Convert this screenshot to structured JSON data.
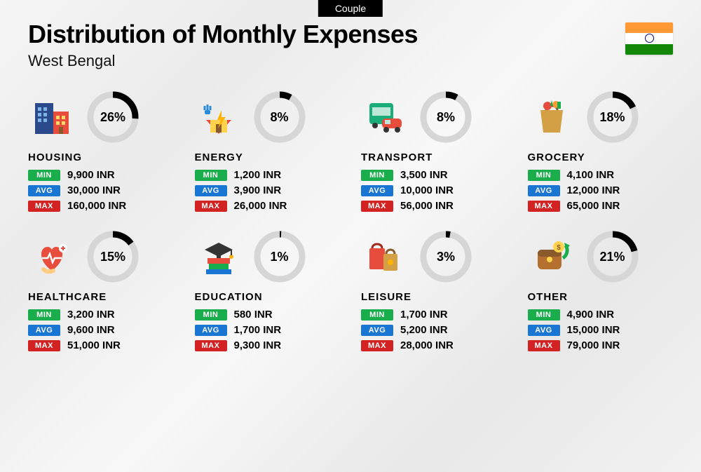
{
  "tag": "Couple",
  "title": "Distribution of Monthly Expenses",
  "subtitle": "West Bengal",
  "currency": "INR",
  "labels": {
    "min": "MIN",
    "avg": "AVG",
    "max": "MAX"
  },
  "colors": {
    "min_badge": "#1aad4b",
    "avg_badge": "#1976d2",
    "max_badge": "#d32222",
    "donut_track": "#d6d6d6",
    "donut_fill": "#000000",
    "background": "#f2f2f2",
    "text": "#000000"
  },
  "donut": {
    "size": 78,
    "stroke_width": 9,
    "radius": 32
  },
  "flag": {
    "saffron": "#FF9933",
    "white": "#ffffff",
    "green": "#138808",
    "chakra": "#000080"
  },
  "categories": [
    {
      "key": "housing",
      "name": "HOUSING",
      "percent": 26,
      "min": "9,900 INR",
      "avg": "30,000 INR",
      "max": "160,000 INR",
      "icon": "housing-icon"
    },
    {
      "key": "energy",
      "name": "ENERGY",
      "percent": 8,
      "min": "1,200 INR",
      "avg": "3,900 INR",
      "max": "26,000 INR",
      "icon": "energy-icon"
    },
    {
      "key": "transport",
      "name": "TRANSPORT",
      "percent": 8,
      "min": "3,500 INR",
      "avg": "10,000 INR",
      "max": "56,000 INR",
      "icon": "transport-icon"
    },
    {
      "key": "grocery",
      "name": "GROCERY",
      "percent": 18,
      "min": "4,100 INR",
      "avg": "12,000 INR",
      "max": "65,000 INR",
      "icon": "grocery-icon"
    },
    {
      "key": "healthcare",
      "name": "HEALTHCARE",
      "percent": 15,
      "min": "3,200 INR",
      "avg": "9,600 INR",
      "max": "51,000 INR",
      "icon": "healthcare-icon"
    },
    {
      "key": "education",
      "name": "EDUCATION",
      "percent": 1,
      "min": "580 INR",
      "avg": "1,700 INR",
      "max": "9,300 INR",
      "icon": "education-icon"
    },
    {
      "key": "leisure",
      "name": "LEISURE",
      "percent": 3,
      "min": "1,700 INR",
      "avg": "5,200 INR",
      "max": "28,000 INR",
      "icon": "leisure-icon"
    },
    {
      "key": "other",
      "name": "OTHER",
      "percent": 21,
      "min": "4,900 INR",
      "avg": "15,000 INR",
      "max": "79,000 INR",
      "icon": "other-icon"
    }
  ]
}
